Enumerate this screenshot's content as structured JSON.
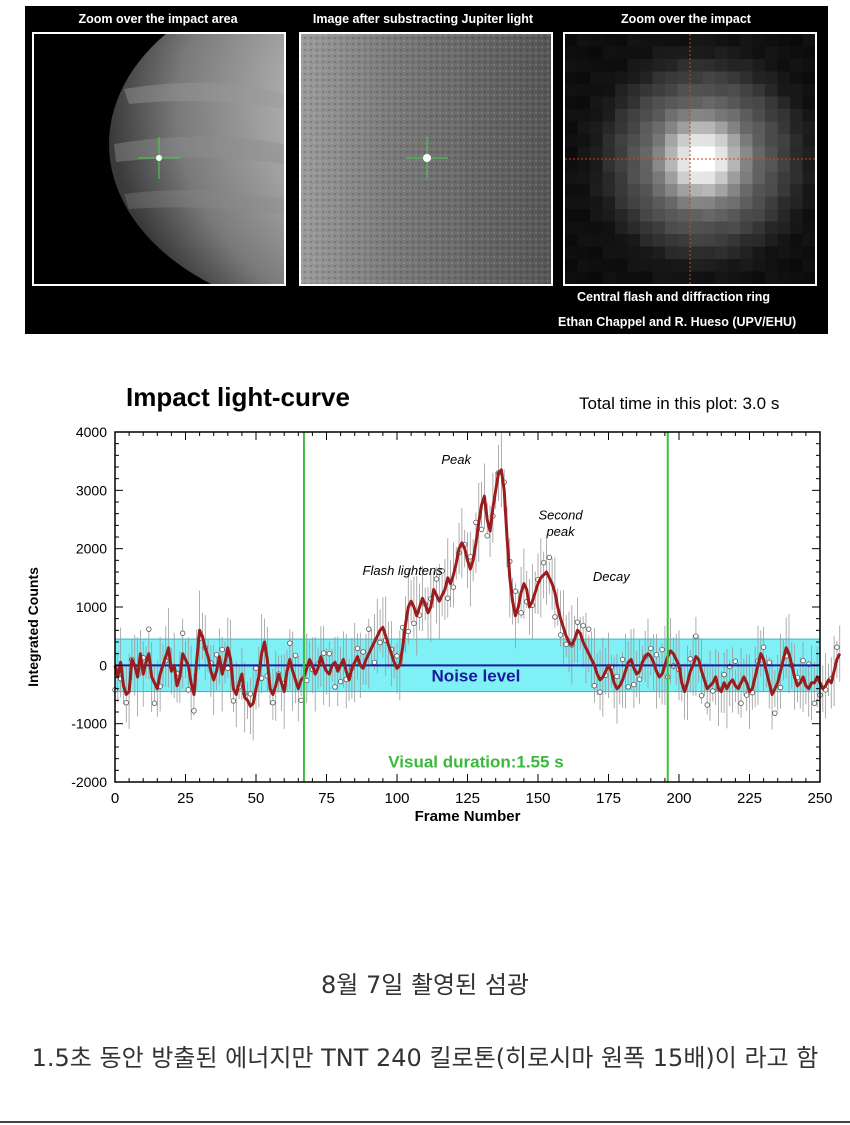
{
  "panels": [
    {
      "title": "Zoom over the impact area"
    },
    {
      "title": "Image after substracting Jupiter light"
    },
    {
      "title": "Zoom over the impact"
    }
  ],
  "panel_caption": "Central flash and diffraction ring",
  "credit": "Ethan Chappel and R. Hueso (UPV/EHU)",
  "chart_data": {
    "type": "line",
    "title": "Impact light-curve",
    "subtitle": "Total time in this plot: 3.0 s",
    "xlabel": "Frame Number",
    "ylabel": "Integrated Counts",
    "xlim": [
      0,
      250
    ],
    "ylim": [
      -2000,
      4000
    ],
    "xticks": [
      0,
      25,
      50,
      75,
      100,
      125,
      150,
      175,
      200,
      225,
      250
    ],
    "yticks": [
      -2000,
      -1000,
      0,
      1000,
      2000,
      3000,
      4000
    ],
    "noise_band": [
      -450,
      450
    ],
    "noise_label": "Noise level",
    "visual_duration": {
      "start": 67,
      "end": 196,
      "label": "Visual duration:1.55 s"
    },
    "annotations": [
      {
        "text": "Flash lightens",
        "x": 102,
        "y": 1550
      },
      {
        "text": "Peak",
        "x": 121,
        "y": 3450
      },
      {
        "text": "Second",
        "x": 158,
        "y": 2500
      },
      {
        "text": "peak",
        "x": 158,
        "y": 2220
      },
      {
        "text": "Decay",
        "x": 176,
        "y": 1450
      }
    ],
    "series": [
      {
        "values": [
          0,
          -200,
          50,
          -350,
          -500,
          -450,
          100,
          0,
          -200,
          200,
          -150,
          50,
          200,
          -200,
          -300,
          -400,
          -150,
          0,
          150,
          300,
          -100,
          0,
          -350,
          -200,
          200,
          100,
          0,
          -300,
          -500,
          100,
          600,
          500,
          300,
          150,
          -100,
          -250,
          -100,
          150,
          -150,
          50,
          300,
          100,
          -400,
          -500,
          -300,
          -150,
          -550,
          -600,
          -700,
          -650,
          -400,
          -200,
          200,
          400,
          100,
          -400,
          -500,
          -350,
          -150,
          -300,
          -450,
          -100,
          100,
          -100,
          -250,
          -400,
          -250,
          -200,
          -50,
          100,
          0,
          -150,
          -50,
          150,
          0,
          -100,
          -150,
          0,
          50,
          -100,
          0,
          100,
          -100,
          -250,
          -50,
          50,
          150,
          0,
          -50,
          100,
          200,
          300,
          400,
          500,
          600,
          650,
          500,
          350,
          200,
          50,
          -50,
          0,
          300,
          700,
          1000,
          1100,
          1000,
          850,
          1000,
          1150,
          1050,
          900,
          1000,
          1300,
          1200,
          1100,
          1200,
          1300,
          1500,
          1400,
          1550,
          1750,
          2000,
          2100,
          2000,
          1800,
          1650,
          1800,
          2100,
          2450,
          2750,
          2900,
          2500,
          2300,
          2700,
          3000,
          3300,
          3350,
          3000,
          2200,
          1500,
          1100,
          850,
          1000,
          1250,
          1400,
          1300,
          1000,
          1100,
          1250,
          1400,
          1500,
          1550,
          1600,
          1500,
          1400,
          1250,
          1000,
          800,
          650,
          500,
          400,
          350,
          450,
          600,
          550,
          400,
          300,
          200,
          100,
          0,
          -150,
          -250,
          -200,
          -100,
          0,
          -100,
          -300,
          -400,
          -350,
          -250,
          -100,
          50,
          100,
          -50,
          -150,
          -100,
          50,
          150,
          200,
          150,
          50,
          -100,
          -200,
          -150,
          0,
          150,
          250,
          200,
          100,
          0,
          -300,
          -450,
          -300,
          -100,
          0,
          150,
          100,
          -100,
          -250,
          -400,
          -350,
          -300,
          -200,
          -400,
          -450,
          -300,
          -400,
          -300,
          -250,
          -350,
          -400,
          -300,
          -200,
          -300,
          -450,
          -400,
          -200,
          0,
          200,
          100,
          -100,
          -300,
          -500,
          -400,
          -300,
          -100,
          100,
          300,
          200,
          0,
          -200,
          -350,
          -300,
          -200,
          -350,
          -400,
          -300,
          -300,
          -200,
          -300,
          -400,
          -350,
          -250,
          -300,
          -100,
          100,
          200
        ]
      }
    ]
  },
  "caption": "8월 7일 촬영된 섬광",
  "description": "1.5초 동안 방출된 에너지만 TNT 240 킬로톤(히로시마 원폭 15배)이 라고 함"
}
